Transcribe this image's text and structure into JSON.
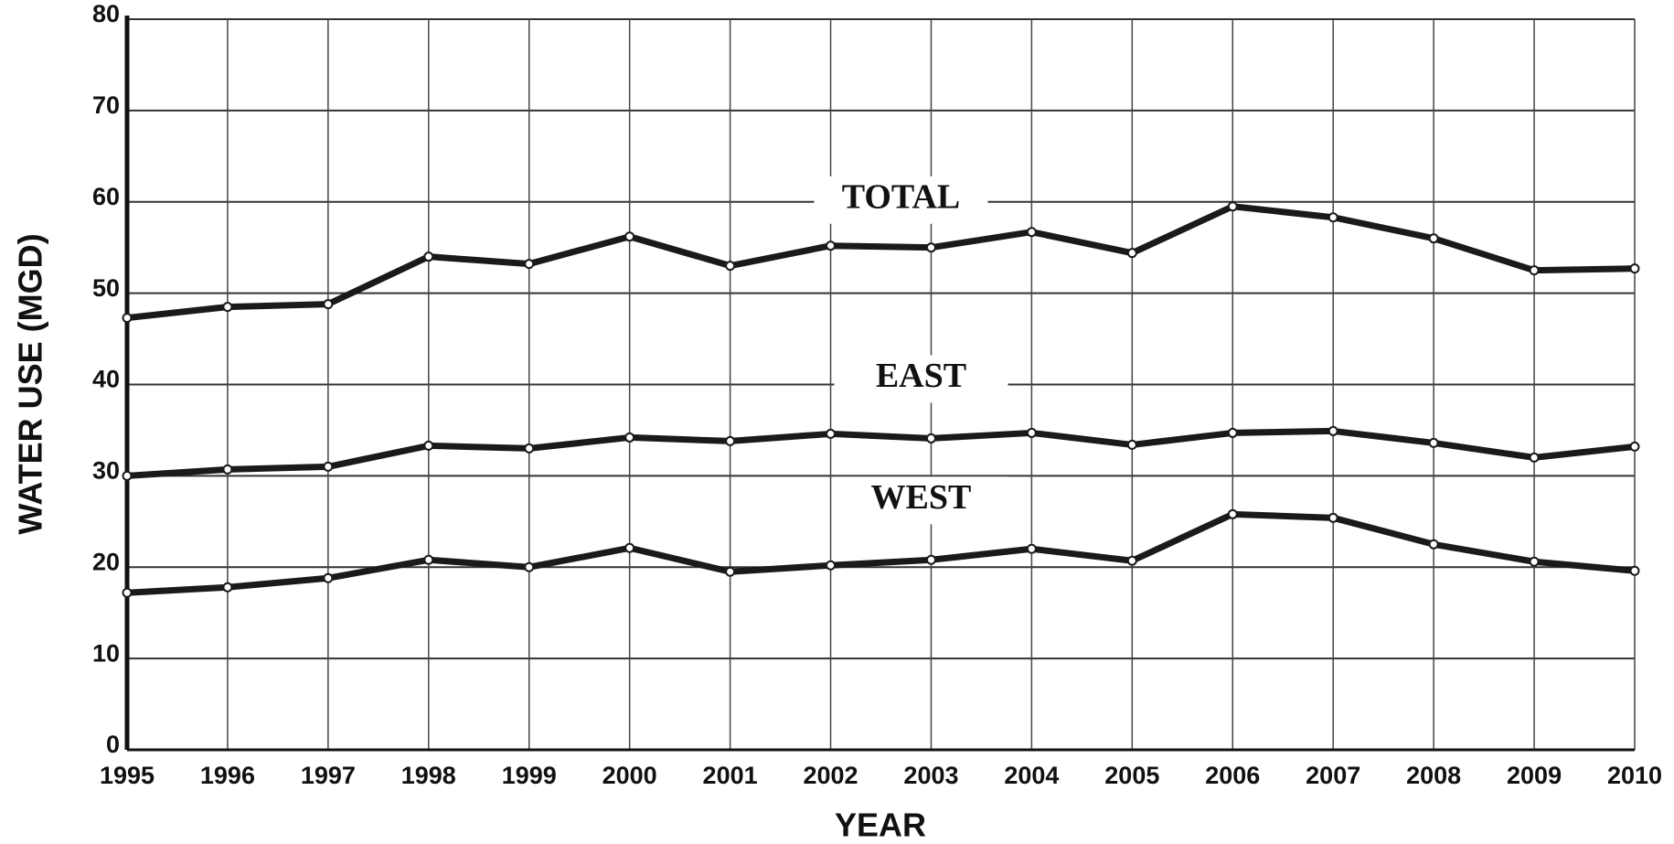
{
  "chart_data": {
    "type": "line",
    "x": [
      1995,
      1996,
      1997,
      1998,
      1999,
      2000,
      2001,
      2002,
      2003,
      2004,
      2005,
      2006,
      2007,
      2008,
      2009,
      2010
    ],
    "series": [
      {
        "name": "TOTAL",
        "color": "#1a1a1a",
        "values": [
          47.3,
          48.5,
          48.8,
          54,
          53.2,
          56.2,
          53,
          55.2,
          55,
          56.7,
          54.4,
          59.5,
          58.3,
          56,
          52.5,
          52.7
        ]
      },
      {
        "name": "EAST",
        "color": "#1a1a1a",
        "values": [
          30,
          30.7,
          31,
          33.3,
          33,
          34.2,
          33.8,
          34.6,
          34.1,
          34.7,
          33.4,
          34.7,
          34.9,
          33.6,
          32,
          33.2
        ]
      },
      {
        "name": "WEST",
        "color": "#1a1a1a",
        "values": [
          17.2,
          17.8,
          18.8,
          20.8,
          20,
          22.1,
          19.5,
          20.2,
          20.8,
          22,
          20.7,
          25.8,
          25.4,
          22.5,
          20.6,
          19.6
        ]
      }
    ],
    "xlabel": "YEAR",
    "ylabel": "WATER USE (MGD)",
    "xlim": [
      1995,
      2010
    ],
    "xticks": [
      1995,
      1996,
      1997,
      1998,
      1999,
      2000,
      2001,
      2002,
      2003,
      2004,
      2005,
      2006,
      2007,
      2008,
      2009,
      2010
    ],
    "ylim": [
      0,
      80
    ],
    "yticks": [
      0,
      10,
      20,
      30,
      40,
      50,
      60,
      70,
      80
    ],
    "grid": true
  }
}
